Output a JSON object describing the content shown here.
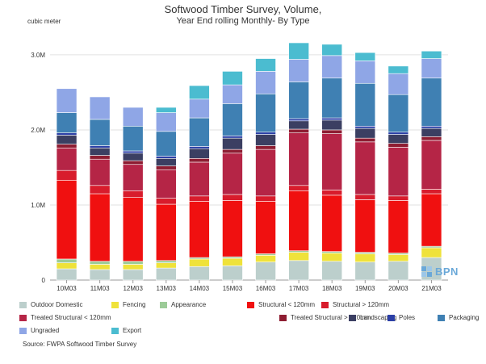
{
  "chart_data": {
    "type": "bar",
    "stacked": true,
    "title": "Softwood Timber Survey, Volume,",
    "subtitle": "Year End rolling Monthly- By Type",
    "ylabel": "cubic meter",
    "xlabel": "",
    "ylim": [
      0,
      3300000
    ],
    "yticks": [
      0,
      1000000,
      2000000,
      3000000
    ],
    "ytick_labels": [
      "0",
      "1.0M",
      "2.0M",
      "3.0M"
    ],
    "grid": true,
    "legend_position": "bottom",
    "categories": [
      "10M03",
      "11M03",
      "12M03",
      "13M03",
      "14M03",
      "15M03",
      "16M03",
      "17M03",
      "18M03",
      "19M03",
      "20M03",
      "21M03"
    ],
    "series": [
      {
        "name": "Outdoor Domestic",
        "color": "#bccfcc",
        "values": [
          150000,
          140000,
          140000,
          160000,
          180000,
          190000,
          240000,
          260000,
          250000,
          240000,
          250000,
          300000
        ]
      },
      {
        "name": "Fencing",
        "color": "#efe23a",
        "values": [
          80000,
          70000,
          70000,
          70000,
          100000,
          100000,
          90000,
          110000,
          110000,
          110000,
          90000,
          130000
        ]
      },
      {
        "name": "Appearance",
        "color": "#9ccb98",
        "values": [
          50000,
          40000,
          40000,
          30000,
          20000,
          20000,
          20000,
          20000,
          20000,
          20000,
          20000,
          20000
        ]
      },
      {
        "name": "Structural < 120mm",
        "color": "#f01010",
        "values": [
          1050000,
          900000,
          850000,
          750000,
          750000,
          750000,
          700000,
          800000,
          750000,
          700000,
          700000,
          700000
        ]
      },
      {
        "name": "Structural > 120mm",
        "color": "#d81c2c",
        "values": [
          130000,
          110000,
          90000,
          80000,
          70000,
          80000,
          70000,
          70000,
          70000,
          70000,
          60000,
          60000
        ]
      },
      {
        "name": "Treated Structural < 120mm",
        "color": "#b52546",
        "values": [
          300000,
          350000,
          350000,
          380000,
          450000,
          550000,
          620000,
          700000,
          750000,
          700000,
          650000,
          650000
        ]
      },
      {
        "name": "Treated Structural > 120mm",
        "color": "#8e1d32",
        "values": [
          50000,
          50000,
          50000,
          50000,
          50000,
          50000,
          50000,
          50000,
          50000,
          50000,
          50000,
          50000
        ]
      },
      {
        "name": "Landscaping",
        "color": "#3b3f62",
        "values": [
          120000,
          100000,
          100000,
          100000,
          130000,
          150000,
          150000,
          110000,
          130000,
          130000,
          120000,
          110000
        ]
      },
      {
        "name": "Poles",
        "color": "#2b3fa6",
        "values": [
          30000,
          30000,
          30000,
          30000,
          30000,
          30000,
          30000,
          30000,
          30000,
          30000,
          30000,
          30000
        ]
      },
      {
        "name": "Packaging",
        "color": "#3f80b3",
        "values": [
          270000,
          350000,
          330000,
          330000,
          380000,
          430000,
          510000,
          490000,
          530000,
          570000,
          500000,
          640000
        ]
      },
      {
        "name": "Ungraded",
        "color": "#8fa6e6",
        "values": [
          320000,
          300000,
          250000,
          250000,
          250000,
          250000,
          300000,
          300000,
          300000,
          300000,
          280000,
          260000
        ]
      },
      {
        "name": "Export",
        "color": "#4bbcd0",
        "values": [
          0,
          0,
          0,
          70000,
          180000,
          180000,
          170000,
          220000,
          150000,
          110000,
          100000,
          100000
        ]
      }
    ],
    "source": "Source:  FWPA Softwood Timber Survey",
    "logo_text": "BPN"
  }
}
